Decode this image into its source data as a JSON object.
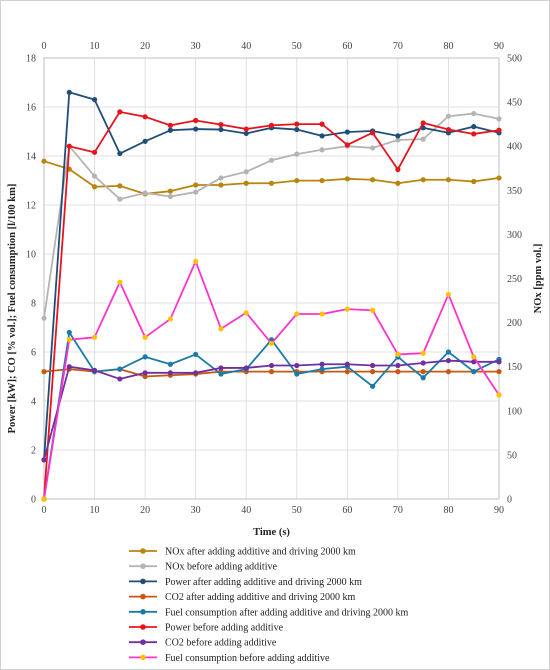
{
  "chart_data": {
    "type": "line",
    "xlabel": "Time (s)",
    "ylabel_left": "Power [kW]; CO [% vol.]; Fuel consumption [l/100 km]",
    "ylabel_right": "NOx [ppm vol.]",
    "x_ticks": [
      "0",
      "10",
      "20",
      "30",
      "40",
      "50",
      "60",
      "70",
      "80",
      "90"
    ],
    "y_left_ticks": [
      "0",
      "2",
      "4",
      "6",
      "8",
      "10",
      "12",
      "14",
      "16",
      "18"
    ],
    "y_right_ticks": [
      "0",
      "50",
      "100",
      "150",
      "200",
      "250",
      "300",
      "350",
      "400",
      "450",
      "500"
    ],
    "xlim": [
      0,
      90
    ],
    "ylim_left": [
      0,
      18
    ],
    "ylim_right": [
      0,
      500
    ],
    "grid": true,
    "legend_position": "bottom",
    "x": [
      0,
      5,
      10,
      15,
      20,
      25,
      30,
      35,
      40,
      45,
      50,
      55,
      60,
      65,
      70,
      75,
      80,
      85,
      90
    ],
    "series": [
      {
        "name": "NOx after adding additive and driving 2000 km",
        "axis": "right",
        "color": "#b8860b",
        "values": [
          383,
          374,
          354,
          355,
          346,
          349,
          356,
          356,
          358,
          358,
          361,
          361,
          363,
          362,
          358,
          362,
          362,
          360,
          364
        ]
      },
      {
        "name": "NOx before adding additive",
        "axis": "right",
        "color": "#b4b4b4",
        "values": [
          205,
          400,
          366,
          340,
          347,
          343,
          348,
          364,
          371,
          384,
          391,
          396,
          400,
          398,
          407,
          408,
          434,
          437,
          431
        ]
      },
      {
        "name": "Power after adding additive and driving 2000 km",
        "axis": "left",
        "color": "#1f4e79",
        "values": [
          1.6,
          16.6,
          16.3,
          14.1,
          14.6,
          15.05,
          15.1,
          15.08,
          14.92,
          15.15,
          15.08,
          14.82,
          14.98,
          15.02,
          14.82,
          15.15,
          14.95,
          15.2,
          14.95
        ]
      },
      {
        "name": "CO2 after adding additive and driving 2000 km",
        "axis": "left",
        "color": "#c65911",
        "values": [
          5.2,
          5.3,
          5.2,
          5.3,
          5.0,
          5.05,
          5.1,
          5.2,
          5.2,
          5.2,
          5.2,
          5.2,
          5.2,
          5.2,
          5.2,
          5.2,
          5.2,
          5.2,
          5.2
        ]
      },
      {
        "name": "Fuel consumption after adding additive and driving 2000 km",
        "axis": "left",
        "color": "#1b7ba8",
        "values": [
          0.0,
          6.8,
          5.2,
          5.3,
          5.8,
          5.5,
          5.9,
          5.1,
          5.3,
          6.5,
          5.1,
          5.3,
          5.4,
          4.6,
          5.8,
          4.95,
          6.0,
          5.2,
          5.7
        ]
      },
      {
        "name": "Power before adding additive",
        "axis": "left",
        "color": "#e8141d",
        "values": [
          0.0,
          14.4,
          14.15,
          15.8,
          15.6,
          15.25,
          15.45,
          15.28,
          15.1,
          15.25,
          15.3,
          15.3,
          14.45,
          14.95,
          13.45,
          15.35,
          15.08,
          14.9,
          15.05
        ]
      },
      {
        "name": "CO2 before adding additive",
        "axis": "left",
        "color": "#7030a0",
        "values": [
          1.6,
          5.4,
          5.25,
          4.9,
          5.15,
          5.15,
          5.15,
          5.35,
          5.35,
          5.45,
          5.45,
          5.5,
          5.5,
          5.45,
          5.45,
          5.55,
          5.65,
          5.6,
          5.6
        ]
      },
      {
        "name": "Fuel consumption before adding additive",
        "axis": "left",
        "color": "#ff33cc",
        "marker": "#ffc000",
        "values": [
          0.0,
          6.5,
          6.6,
          8.85,
          6.6,
          7.35,
          9.7,
          6.95,
          7.6,
          6.35,
          7.55,
          7.55,
          7.75,
          7.7,
          5.9,
          5.95,
          8.35,
          5.8,
          4.25
        ]
      }
    ]
  }
}
